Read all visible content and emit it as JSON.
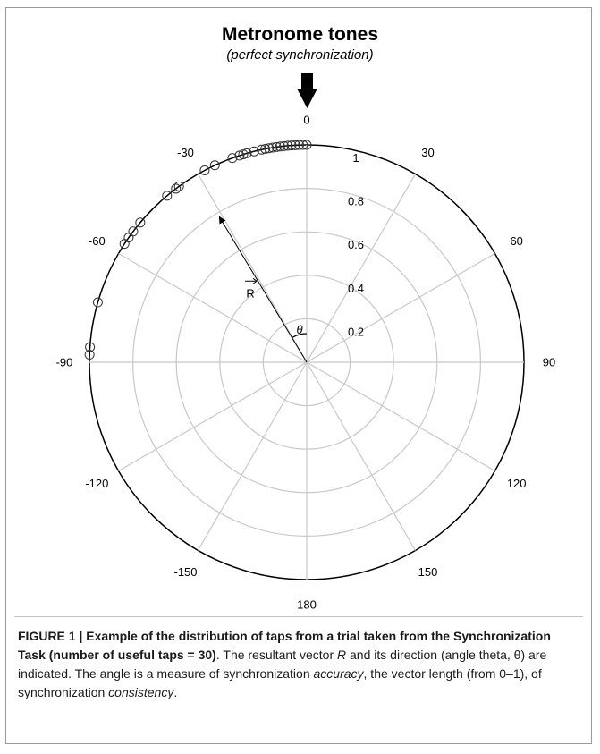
{
  "figure": {
    "title": "Metronome tones",
    "subtitle": "(perfect synchronization)"
  },
  "chart_data": {
    "type": "polar-scatter",
    "angle_unit": "degrees",
    "angle_ticks": [
      0,
      30,
      60,
      90,
      120,
      150,
      180,
      -150,
      -120,
      -90,
      -60,
      -30
    ],
    "radial_ticks": [
      0.2,
      0.4,
      0.6,
      0.8,
      1
    ],
    "radial_range": [
      0,
      1
    ],
    "grid": true,
    "taps": [
      {
        "angle": 0,
        "r": 1
      },
      {
        "angle": -1,
        "r": 1
      },
      {
        "angle": -2,
        "r": 1
      },
      {
        "angle": -3,
        "r": 1
      },
      {
        "angle": -4,
        "r": 1
      },
      {
        "angle": -5,
        "r": 1
      },
      {
        "angle": -6,
        "r": 1
      },
      {
        "angle": -7,
        "r": 1
      },
      {
        "angle": -8,
        "r": 1
      },
      {
        "angle": -9,
        "r": 1
      },
      {
        "angle": -10,
        "r": 1
      },
      {
        "angle": -11,
        "r": 1
      },
      {
        "angle": -12,
        "r": 1
      },
      {
        "angle": -14,
        "r": 1
      },
      {
        "angle": -16,
        "r": 1
      },
      {
        "angle": -17,
        "r": 1
      },
      {
        "angle": -18,
        "r": 1
      },
      {
        "angle": -20,
        "r": 1
      },
      {
        "angle": -25,
        "r": 1
      },
      {
        "angle": -28,
        "r": 1
      },
      {
        "angle": -36,
        "r": 1
      },
      {
        "angle": -37,
        "r": 1
      },
      {
        "angle": -40,
        "r": 1
      },
      {
        "angle": -50,
        "r": 1
      },
      {
        "angle": -53,
        "r": 1
      },
      {
        "angle": -55,
        "r": 1
      },
      {
        "angle": -57,
        "r": 1
      },
      {
        "angle": -74,
        "r": 1
      },
      {
        "angle": -86,
        "r": 1
      },
      {
        "angle": -88,
        "r": 1
      }
    ],
    "resultant_vector": {
      "label": "R",
      "angle": -31,
      "r": 0.78
    },
    "theta_label": "θ"
  },
  "caption": {
    "figure_label": "FIGURE 1 | Example of the distribution of taps from a trial taken from the Synchronization Task (number of useful taps = 30)",
    "text_1": ". The resultant vector ",
    "R": "R",
    "text_2": " and its direction (angle theta, θ) are indicated. The angle is a measure of synchronization ",
    "accuracy": "accuracy",
    "text_3": ", the vector length (from 0–1), of synchronization ",
    "consistency": "consistency",
    "text_4": "."
  }
}
